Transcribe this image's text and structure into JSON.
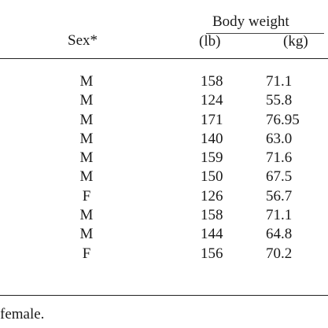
{
  "table": {
    "group_header": "Body weight",
    "columns": {
      "sex": "Sex*",
      "lb": "(lb)",
      "kg": "(kg)"
    },
    "rows": [
      {
        "sex": "M",
        "lb": "158",
        "kg": "71.1"
      },
      {
        "sex": "M",
        "lb": "124",
        "kg": "55.8"
      },
      {
        "sex": "M",
        "lb": "171",
        "kg": "76.95"
      },
      {
        "sex": "M",
        "lb": "140",
        "kg": "63.0"
      },
      {
        "sex": "M",
        "lb": "159",
        "kg": "71.6"
      },
      {
        "sex": "M",
        "lb": "150",
        "kg": "67.5"
      },
      {
        "sex": "F",
        "lb": "126",
        "kg": "56.7"
      },
      {
        "sex": "M",
        "lb": "158",
        "kg": "71.1"
      },
      {
        "sex": "M",
        "lb": "144",
        "kg": "64.8"
      },
      {
        "sex": "F",
        "lb": "156",
        "kg": "70.2"
      }
    ]
  },
  "footnote": "female."
}
